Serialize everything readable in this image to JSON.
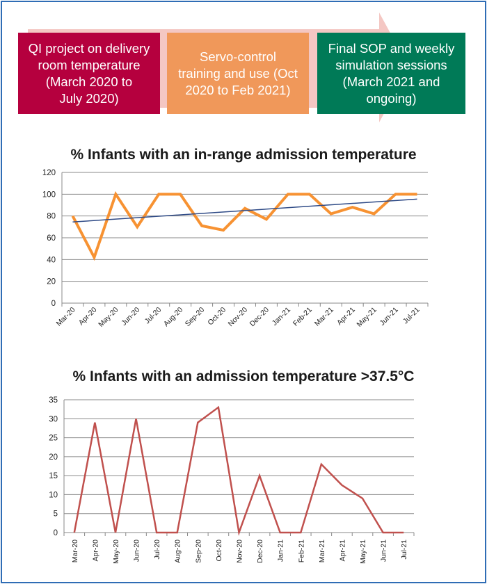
{
  "banner": {
    "phases": [
      {
        "label": "QI project on delivery\nroom temperature\n(March 2020 to\nJuly 2020)",
        "color": "#b5003e"
      },
      {
        "label": "Servo-control\ntraining and use (Oct\n2020 to Feb 2021)",
        "color": "#f0985a"
      },
      {
        "label": "Final SOP and weekly\nsimulation sessions\n(March 2021 and\nongoing)",
        "color": "#007a57"
      }
    ],
    "arrow_color": "#f4c7c3"
  },
  "chart_data": [
    {
      "type": "line",
      "title": "% Infants with an in-range admission temperature",
      "categories": [
        "Mar-20",
        "Apr-20",
        "May-20",
        "Jun-20",
        "Jul-20",
        "Aug-20",
        "Sep-20",
        "Oct-20",
        "Nov-20",
        "Dec-20",
        "Jan-21",
        "Feb-21",
        "Mar-21",
        "Apr-21",
        "May-21",
        "Jun-21",
        "Jul-21"
      ],
      "series": [
        {
          "values": [
            80,
            42,
            100,
            70,
            100,
            100,
            71,
            67,
            87,
            77,
            100,
            100,
            82,
            88,
            82,
            100,
            100
          ],
          "color": "#f79232"
        }
      ],
      "trendline": {
        "start": 74.5,
        "end": 95.5,
        "color": "#2e4a86"
      },
      "ylim": [
        0,
        120
      ],
      "yticks": [
        0,
        20,
        40,
        60,
        80,
        100,
        120
      ],
      "grid": true,
      "xlabel": "",
      "ylabel": ""
    },
    {
      "type": "line",
      "title": "% Infants with an admission temperature >37.5°C",
      "categories": [
        "Mar-20",
        "Apr-20",
        "May-20",
        "Jun-20",
        "Jul-20",
        "Aug-20",
        "Sep-20",
        "Oct-20",
        "Nov-20",
        "Dec-20",
        "Jan-21",
        "Feb-21",
        "Mar-21",
        "Apr-21",
        "May-21",
        "Jun-21",
        "Jul-21"
      ],
      "series": [
        {
          "values": [
            0,
            29,
            0,
            30,
            0,
            0,
            29,
            33,
            0,
            15,
            0,
            0,
            18,
            12.5,
            9,
            0,
            0
          ],
          "color": "#c0504d"
        }
      ],
      "ylim": [
        0,
        35
      ],
      "yticks": [
        0,
        5,
        10,
        15,
        20,
        25,
        30,
        35
      ],
      "grid": true,
      "xlabel": "",
      "ylabel": ""
    }
  ]
}
